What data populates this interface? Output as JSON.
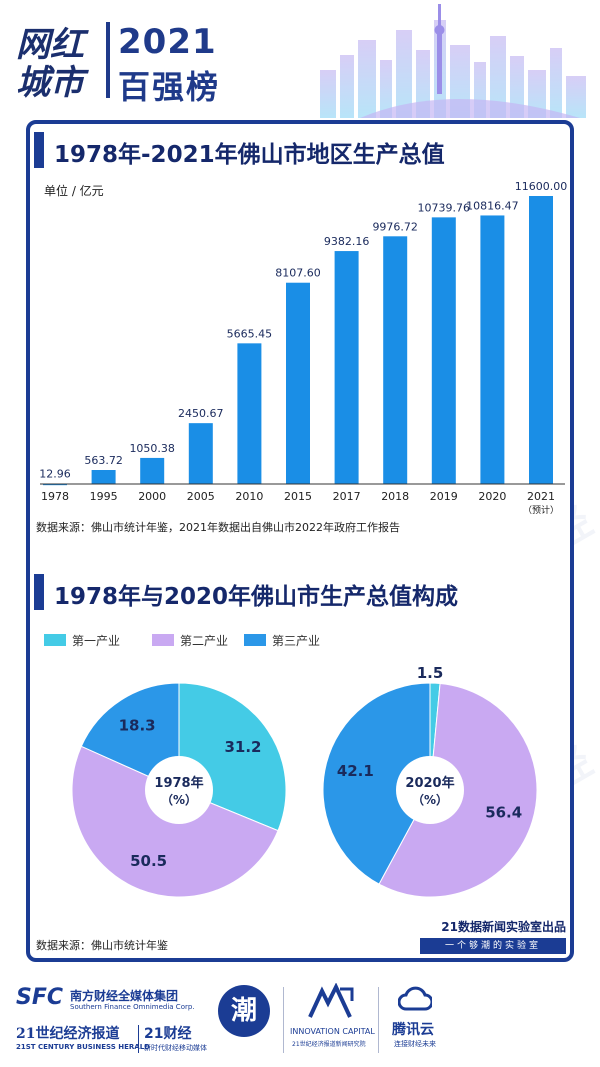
{
  "header": {
    "logo_text": [
      "网红",
      "城市"
    ],
    "year": "2021",
    "rank_title": "百强榜"
  },
  "section1": {
    "title": "1978年-2021年佛山市地区生产总值"
  },
  "section2": {
    "title": "1978年与2020年佛山市生产总值构成"
  },
  "colors": {
    "navy": "#1b3c94",
    "bar_blue": "#1a8ee6",
    "primary": "#44cbe6",
    "secondary": "#c9a9f2",
    "tertiary": "#2b97e8"
  },
  "chart_data": [
    {
      "type": "bar",
      "ylabel": "单位 / 亿元",
      "categories": [
        "1978",
        "1995",
        "2000",
        "2005",
        "2010",
        "2015",
        "2017",
        "2018",
        "2019",
        "2020",
        "2021"
      ],
      "category_notes": [
        "",
        "",
        "",
        "",
        "",
        "",
        "",
        "",
        "",
        "",
        "（预计）"
      ],
      "values": [
        12.96,
        563.72,
        1050.38,
        2450.67,
        5665.45,
        8107.6,
        9382.16,
        9976.72,
        10739.76,
        10816.47,
        11600.0
      ],
      "value_labels": [
        "12.96",
        "563.72",
        "1050.38",
        "2450.67",
        "5665.45",
        "8107.60",
        "9382.16",
        "9976.72",
        "10739.76",
        "10816.47",
        "11600.00"
      ],
      "ylim": [
        0,
        11600
      ],
      "source": "数据来源：佛山市统计年鉴，2021年数据出自佛山市2022年政府工作报告"
    },
    {
      "type": "pie",
      "center_label": [
        "1978年",
        "（%）"
      ],
      "series": [
        {
          "name": "第一产业",
          "values": [
            31.2
          ]
        },
        {
          "name": "第二产业",
          "values": [
            50.5
          ]
        },
        {
          "name": "第三产业",
          "values": [
            18.3
          ]
        }
      ]
    },
    {
      "type": "pie",
      "center_label": [
        "2020年",
        "（%）"
      ],
      "series": [
        {
          "name": "第一产业",
          "values": [
            1.5
          ]
        },
        {
          "name": "第二产业",
          "values": [
            56.4
          ]
        },
        {
          "name": "第三产业",
          "values": [
            42.1
          ]
        }
      ]
    }
  ],
  "legend": [
    "第一产业",
    "第二产业",
    "第三产业"
  ],
  "pie_source": "数据来源：佛山市统计年鉴",
  "lab": {
    "title": "21数据新闻实验室出品",
    "slogan": "一个够潮的实验室"
  },
  "footer": {
    "sfc_logo": "SFC",
    "sfc_name": "南方财经全媒体集团",
    "sfc_en": "Southern Finance Omnimedia Corp.",
    "herald": "21世纪经济报道",
    "herald_en": "21ST CENTURY BUSINESS HERALD",
    "brand21": "21财经",
    "brand21_sub": "新时代财经移动媒体",
    "chao_mark": "潮",
    "innovation": "INNOVATION CAPITAL",
    "innovation_sub": "21世纪经济报道新闻研究院",
    "tencent": "腾讯云",
    "tencent_sub": "连接财经未来"
  },
  "watermark": "21财经"
}
